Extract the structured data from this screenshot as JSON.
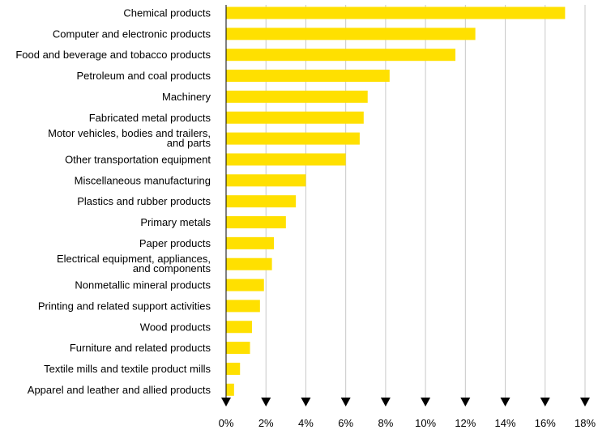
{
  "chart_data": {
    "type": "bar",
    "orientation": "horizontal",
    "title": "",
    "xlabel": "",
    "ylabel": "",
    "categories": [
      "Chemical products",
      "Computer and electronic products",
      "Food and beverage and tobacco products",
      "Petroleum and coal products",
      "Machinery",
      "Fabricated metal products",
      "Motor vehicles, bodies and trailers, and parts",
      "Other transportation equipment",
      "Miscellaneous manufacturing",
      "Plastics and rubber products",
      "Primary metals",
      "Paper products",
      "Electrical equipment, appliances, and components",
      "Nonmetallic mineral products",
      "Printing and related support activities",
      "Wood products",
      "Furniture and related products",
      "Textile mills and textile product mills",
      "Apparel and leather and allied products"
    ],
    "category_lines": [
      [
        "Chemical products"
      ],
      [
        "Computer and electronic products"
      ],
      [
        "Food and beverage and tobacco products"
      ],
      [
        "Petroleum and coal products"
      ],
      [
        "Machinery"
      ],
      [
        "Fabricated metal products"
      ],
      [
        "Motor vehicles, bodies and trailers,",
        "and parts"
      ],
      [
        "Other transportation equipment"
      ],
      [
        "Miscellaneous manufacturing"
      ],
      [
        "Plastics and rubber products"
      ],
      [
        "Primary metals"
      ],
      [
        "Paper products"
      ],
      [
        "Electrical equipment, appliances,",
        "and components"
      ],
      [
        "Nonmetallic mineral products"
      ],
      [
        "Printing and related support activities"
      ],
      [
        "Wood products"
      ],
      [
        "Furniture and related products"
      ],
      [
        "Textile mills and textile product mills"
      ],
      [
        "Apparel and leather and allied products"
      ]
    ],
    "values": [
      17.0,
      12.5,
      11.5,
      8.2,
      7.1,
      6.9,
      6.7,
      6.0,
      4.0,
      3.5,
      3.0,
      2.4,
      2.3,
      1.9,
      1.7,
      1.3,
      1.2,
      0.7,
      0.4
    ],
    "xlim": [
      0,
      18
    ],
    "ticks": [
      0,
      2,
      4,
      6,
      8,
      10,
      12,
      14,
      16,
      18
    ],
    "tick_labels": [
      "0%",
      "2%",
      "4%",
      "6%",
      "8%",
      "10%",
      "12%",
      "14%",
      "16%",
      "18%"
    ],
    "grid": true,
    "bar_color": "#FFE000",
    "grid_color": "#C8C8C8"
  }
}
